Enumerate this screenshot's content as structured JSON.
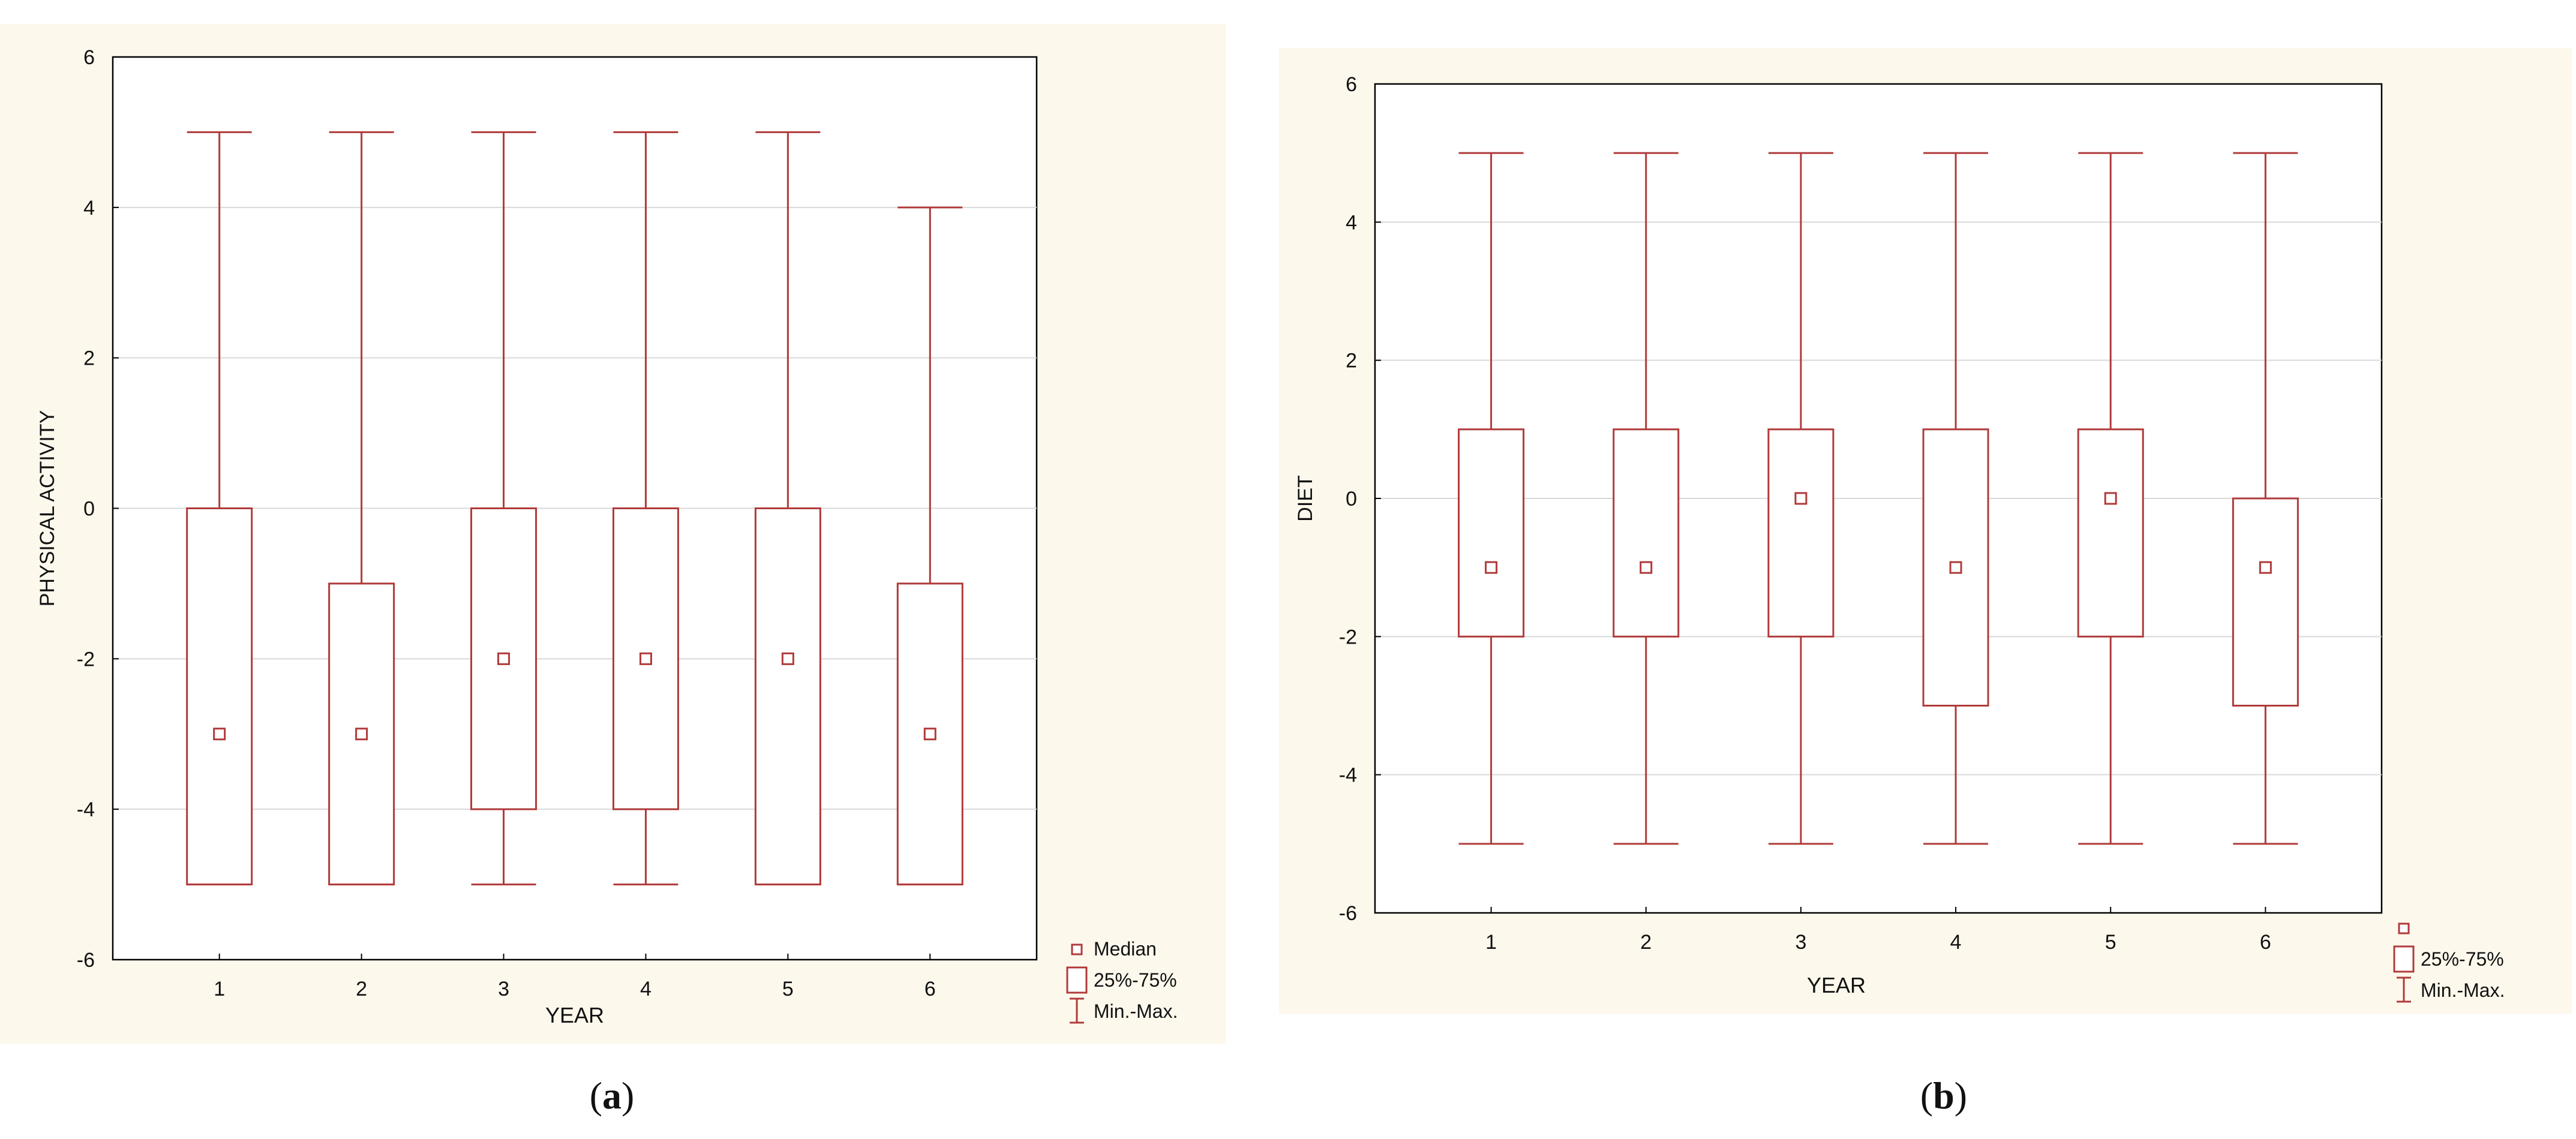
{
  "chart_data": [
    {
      "type": "box",
      "panel_label": "a",
      "xlabel": "YEAR",
      "ylabel": "PHYSICAL ACTIVITY",
      "ylim": [
        -6,
        6
      ],
      "yticks": [
        -6,
        -4,
        -2,
        0,
        2,
        4,
        6
      ],
      "grid": true,
      "categories": [
        "1",
        "2",
        "3",
        "4",
        "5",
        "6"
      ],
      "boxes": [
        {
          "min": -5,
          "q1": -5,
          "median": -3,
          "q3": 0,
          "max": 5
        },
        {
          "min": -5,
          "q1": -5,
          "median": -3,
          "q3": -1,
          "max": 5
        },
        {
          "min": -5,
          "q1": -4,
          "median": -2,
          "q3": 0,
          "max": 5
        },
        {
          "min": -5,
          "q1": -4,
          "median": -2,
          "q3": 0,
          "max": 5
        },
        {
          "min": -5,
          "q1": -5,
          "median": -2,
          "q3": 0,
          "max": 5
        },
        {
          "min": -5,
          "q1": -5,
          "median": -3,
          "q3": -1,
          "max": 4
        }
      ],
      "legend": {
        "placement": "bottom-right",
        "entries": [
          "Median",
          "25%-75%",
          "Min.-Max."
        ]
      },
      "color": "#b03a3a"
    },
    {
      "type": "box",
      "panel_label": "b",
      "xlabel": "YEAR",
      "ylabel": "DIET",
      "ylim": [
        -6,
        6
      ],
      "yticks": [
        -6,
        -4,
        -2,
        0,
        2,
        4,
        6
      ],
      "grid": true,
      "categories": [
        "1",
        "2",
        "3",
        "4",
        "5",
        "6"
      ],
      "boxes": [
        {
          "min": -5,
          "q1": -2,
          "median": -1,
          "q3": 1,
          "max": 5
        },
        {
          "min": -5,
          "q1": -2,
          "median": -1,
          "q3": 1,
          "max": 5
        },
        {
          "min": -5,
          "q1": -2,
          "median": 0,
          "q3": 1,
          "max": 5
        },
        {
          "min": -5,
          "q1": -3,
          "median": -1,
          "q3": 1,
          "max": 5
        },
        {
          "min": -5,
          "q1": -2,
          "median": 0,
          "q3": 1,
          "max": 5
        },
        {
          "min": -5,
          "q1": -3,
          "median": -1,
          "q3": 0,
          "max": 5
        }
      ],
      "legend": {
        "placement": "bottom-right",
        "entries": [
          "",
          "25%-75%",
          "Min.-Max."
        ]
      },
      "color": "#b03a3a"
    }
  ],
  "captions": {
    "a": {
      "open": "(",
      "letter": "a",
      "close": ")"
    },
    "b": {
      "open": "(",
      "letter": "b",
      "close": ")"
    }
  }
}
